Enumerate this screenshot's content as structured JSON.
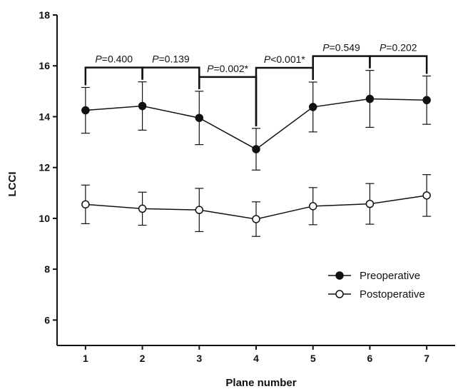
{
  "chart_data": {
    "type": "line",
    "title": "",
    "xlabel": "Plane number",
    "ylabel": "LCCI",
    "x": [
      1,
      2,
      3,
      4,
      5,
      6,
      7
    ],
    "xlim": [
      0.5,
      7.5
    ],
    "ylim": [
      5,
      18
    ],
    "yticks": [
      6,
      8,
      10,
      12,
      14,
      16,
      18
    ],
    "grid": false,
    "legend_position": "bottom-right",
    "series": [
      {
        "name": "Preoperative",
        "marker": "filled-circle",
        "values": [
          14.25,
          14.42,
          13.95,
          12.72,
          14.38,
          14.7,
          14.65
        ],
        "error": [
          0.9,
          0.95,
          1.05,
          0.82,
          0.98,
          1.12,
          0.95
        ]
      },
      {
        "name": "Postoperative",
        "marker": "open-circle",
        "values": [
          10.55,
          10.38,
          10.33,
          9.97,
          10.48,
          10.57,
          10.9
        ],
        "error": [
          0.76,
          0.65,
          0.85,
          0.68,
          0.73,
          0.8,
          0.82
        ]
      }
    ],
    "annotations": [
      {
        "from": 1,
        "to": 2,
        "p_symbol": "P",
        "p_text": "=0.400"
      },
      {
        "from": 2,
        "to": 3,
        "p_symbol": "P",
        "p_text": "=0.139"
      },
      {
        "from": 3,
        "to": 4,
        "p_symbol": "P",
        "p_text": "=0.002*"
      },
      {
        "from": 4,
        "to": 5,
        "p_symbol": "P",
        "p_text": "<0.001*"
      },
      {
        "from": 5,
        "to": 6,
        "p_symbol": "P",
        "p_text": "=0.549"
      },
      {
        "from": 6,
        "to": 7,
        "p_symbol": "P",
        "p_text": "=0.202"
      }
    ]
  }
}
